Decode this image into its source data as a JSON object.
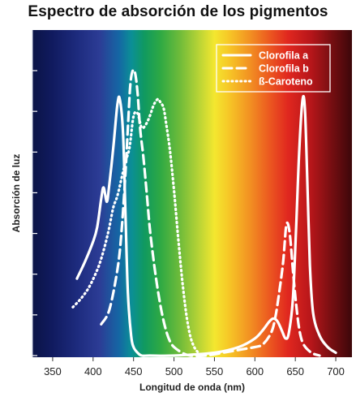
{
  "chart_data": {
    "type": "line",
    "title": "Espectro de absorción de los pigmentos",
    "xlabel": "Longitud de onda (nm)",
    "ylabel": "Absorción de luz",
    "xlim": [
      325,
      720
    ],
    "ylim": [
      0,
      1
    ],
    "x_ticks": [
      350,
      400,
      450,
      500,
      550,
      600,
      650,
      700
    ],
    "y_ticks_labeled": false,
    "background": "visible-light spectrum gradient (violet → red)",
    "legend_position": "top-right",
    "series": [
      {
        "name": "Clorofila a",
        "line_style": "solid",
        "color": "#ffffff",
        "x": [
          380,
          390,
          400,
          405,
          410,
          413,
          417,
          420,
          425,
          430,
          433,
          437,
          440,
          443,
          447,
          450,
          455,
          460,
          470,
          500,
          550,
          580,
          600,
          610,
          618,
          623,
          628,
          633,
          638,
          642,
          647,
          651,
          655,
          659,
          662,
          665,
          668,
          672,
          680,
          690,
          700
        ],
        "y": [
          0.27,
          0.33,
          0.4,
          0.45,
          0.55,
          0.59,
          0.54,
          0.6,
          0.73,
          0.88,
          0.9,
          0.78,
          0.5,
          0.22,
          0.07,
          0.03,
          0.01,
          0.0,
          0.0,
          0.0,
          0.01,
          0.03,
          0.06,
          0.09,
          0.12,
          0.13,
          0.12,
          0.09,
          0.06,
          0.08,
          0.2,
          0.45,
          0.73,
          0.9,
          0.86,
          0.6,
          0.32,
          0.15,
          0.07,
          0.03,
          0.01
        ]
      },
      {
        "name": "Clorofila b",
        "line_style": "dashed",
        "color": "#ffffff",
        "x": [
          410,
          420,
          430,
          435,
          440,
          443,
          446,
          449,
          452,
          455,
          458,
          462,
          466,
          470,
          475,
          480,
          485,
          490,
          495,
          500,
          510,
          520,
          540,
          560,
          580,
          600,
          610,
          620,
          625,
          630,
          635,
          639,
          643,
          647,
          651,
          655,
          660,
          670,
          680
        ],
        "y": [
          0.11,
          0.16,
          0.3,
          0.43,
          0.64,
          0.8,
          0.95,
          1.0,
          0.99,
          0.92,
          0.8,
          0.7,
          0.58,
          0.45,
          0.33,
          0.23,
          0.15,
          0.09,
          0.05,
          0.03,
          0.01,
          0.0,
          0.0,
          0.01,
          0.02,
          0.03,
          0.04,
          0.08,
          0.13,
          0.22,
          0.33,
          0.46,
          0.43,
          0.3,
          0.18,
          0.09,
          0.04,
          0.01,
          0.0
        ]
      },
      {
        "name": "ß-Caroteno",
        "line_style": "dotted",
        "color": "#ffffff",
        "x": [
          375,
          385,
          395,
          405,
          410,
          415,
          420,
          425,
          430,
          435,
          440,
          445,
          450,
          455,
          460,
          465,
          470,
          475,
          480,
          483,
          487,
          490,
          495,
          500,
          505,
          510,
          515,
          520,
          525,
          530
        ],
        "y": [
          0.17,
          0.2,
          0.24,
          0.3,
          0.34,
          0.39,
          0.45,
          0.52,
          0.56,
          0.62,
          0.68,
          0.73,
          0.84,
          0.85,
          0.8,
          0.81,
          0.84,
          0.88,
          0.9,
          0.89,
          0.87,
          0.82,
          0.72,
          0.58,
          0.42,
          0.27,
          0.15,
          0.07,
          0.03,
          0.01
        ]
      }
    ]
  }
}
